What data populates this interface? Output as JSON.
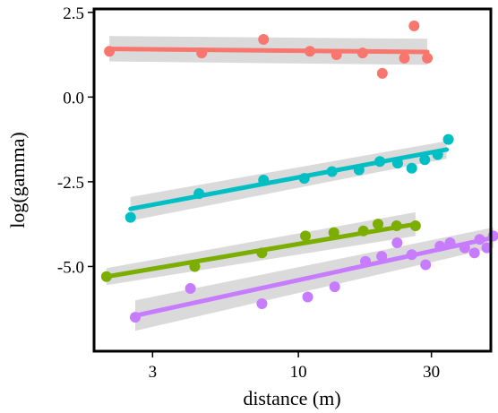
{
  "chart_data": {
    "type": "scatter",
    "title": "",
    "xlabel": "distance (m)",
    "ylabel": "log(gamma)",
    "x_scale": "log",
    "xlim": [
      1.85,
      49
    ],
    "ylim": [
      -7.5,
      2.6
    ],
    "x_ticks": [
      3,
      10,
      30
    ],
    "x_tick_labels": [
      "3",
      "10",
      "30"
    ],
    "y_ticks": [
      2.5,
      0.0,
      -2.5,
      -5.0
    ],
    "y_tick_labels": [
      "2.5",
      "0.0",
      "-2.5",
      "-5.0"
    ],
    "grid": false,
    "legend": "none",
    "series": [
      {
        "color": "#F8766D",
        "points": [
          [
            2.1,
            1.35
          ],
          [
            4.5,
            1.3
          ],
          [
            7.5,
            1.7
          ],
          [
            11,
            1.35
          ],
          [
            13.7,
            1.25
          ],
          [
            17,
            1.3
          ],
          [
            20,
            0.7
          ],
          [
            24,
            1.15
          ],
          [
            26,
            2.1
          ],
          [
            29,
            1.15
          ]
        ],
        "fit": {
          "x": [
            2.1,
            29
          ],
          "y": [
            1.42,
            1.33
          ]
        },
        "band": {
          "lower": [
            1.05,
            0.95
          ],
          "upper": [
            1.8,
            1.72
          ]
        }
      },
      {
        "color": "#00BFC4",
        "points": [
          [
            2.5,
            -3.55
          ],
          [
            4.4,
            -2.85
          ],
          [
            7.5,
            -2.45
          ],
          [
            10.5,
            -2.4
          ],
          [
            13.2,
            -2.2
          ],
          [
            16.5,
            -2.15
          ],
          [
            19.6,
            -1.9
          ],
          [
            22.7,
            -1.95
          ],
          [
            25.5,
            -2.1
          ],
          [
            28.4,
            -1.85
          ],
          [
            31.6,
            -1.7
          ],
          [
            34.5,
            -1.25
          ]
        ],
        "fit": {
          "x": [
            2.5,
            34
          ],
          "y": [
            -3.3,
            -1.55
          ]
        },
        "band": {
          "lower": [
            -3.65,
            -1.82
          ],
          "upper": [
            -2.95,
            -1.3
          ]
        }
      },
      {
        "color": "#7CAE00",
        "points": [
          [
            2.05,
            -5.3
          ],
          [
            4.25,
            -5.0
          ],
          [
            7.4,
            -4.6
          ],
          [
            10.6,
            -4.1
          ],
          [
            13.4,
            -4.0
          ],
          [
            17.1,
            -3.95
          ],
          [
            19.3,
            -3.75
          ],
          [
            22.5,
            -3.8
          ],
          [
            26.3,
            -3.8
          ]
        ],
        "fit": {
          "x": [
            2.05,
            26.3
          ],
          "y": [
            -5.3,
            -3.75
          ]
        },
        "band": {
          "lower": [
            -5.55,
            -4.1
          ],
          "upper": [
            -5.05,
            -3.4
          ]
        }
      },
      {
        "color": "#C77CFF",
        "points": [
          [
            2.6,
            -6.5
          ],
          [
            4.1,
            -5.65
          ],
          [
            7.4,
            -6.1
          ],
          [
            10.8,
            -5.9
          ],
          [
            13.5,
            -5.6
          ],
          [
            17.4,
            -4.85
          ],
          [
            19.9,
            -4.7
          ],
          [
            22.6,
            -4.3
          ],
          [
            25.5,
            -4.65
          ],
          [
            28.6,
            -4.95
          ],
          [
            32.2,
            -4.4
          ],
          [
            35.0,
            -4.3
          ],
          [
            39.5,
            -4.45
          ],
          [
            42.8,
            -4.6
          ],
          [
            44.7,
            -4.2
          ],
          [
            47.4,
            -4.45
          ],
          [
            50.0,
            -4.1
          ]
        ],
        "fit": {
          "x": [
            2.6,
            50
          ],
          "y": [
            -6.45,
            -4.15
          ]
        },
        "band": {
          "lower": [
            -6.9,
            -4.45
          ],
          "upper": [
            -6.0,
            -3.85
          ]
        }
      }
    ]
  }
}
